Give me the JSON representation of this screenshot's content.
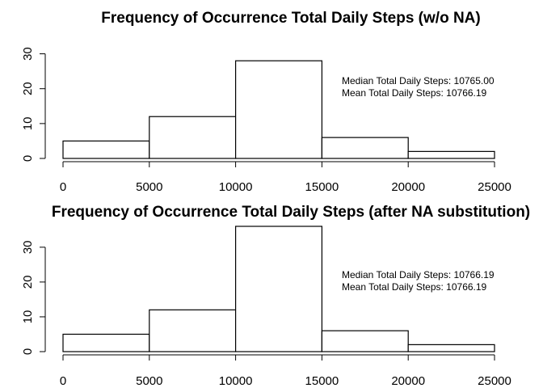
{
  "chart_data": [
    {
      "type": "bar",
      "title": "Frequency of Occurrence Total Daily Steps (w/o NA)",
      "bins": [
        [
          0,
          5000
        ],
        [
          5000,
          10000
        ],
        [
          10000,
          15000
        ],
        [
          15000,
          20000
        ],
        [
          20000,
          25000
        ]
      ],
      "values": [
        5,
        12,
        28,
        6,
        2
      ],
      "xlim": [
        0,
        25000
      ],
      "ylim": [
        0,
        35
      ],
      "xticks": [
        "0",
        "5000",
        "10000",
        "15000",
        "20000",
        "25000"
      ],
      "yticks": [
        "0",
        "10",
        "20",
        "30"
      ],
      "annotations": [
        "Median Total Daily Steps:  10765.00",
        "Mean Total Daily Steps:  10766.19"
      ],
      "grid": false
    },
    {
      "type": "bar",
      "title": "Frequency of Occurrence Total Daily Steps (after NA substitution)",
      "bins": [
        [
          0,
          5000
        ],
        [
          5000,
          10000
        ],
        [
          10000,
          15000
        ],
        [
          15000,
          20000
        ],
        [
          20000,
          25000
        ]
      ],
      "values": [
        5,
        12,
        36,
        6,
        2
      ],
      "xlim": [
        0,
        25000
      ],
      "ylim": [
        0,
        36
      ],
      "xticks": [
        "0",
        "5000",
        "10000",
        "15000",
        "20000",
        "25000"
      ],
      "yticks": [
        "0",
        "10",
        "20",
        "30"
      ],
      "annotations": [
        "Median Total Daily Steps:  10766.19",
        "Mean Total Daily Steps:  10766.19"
      ],
      "grid": false
    }
  ]
}
